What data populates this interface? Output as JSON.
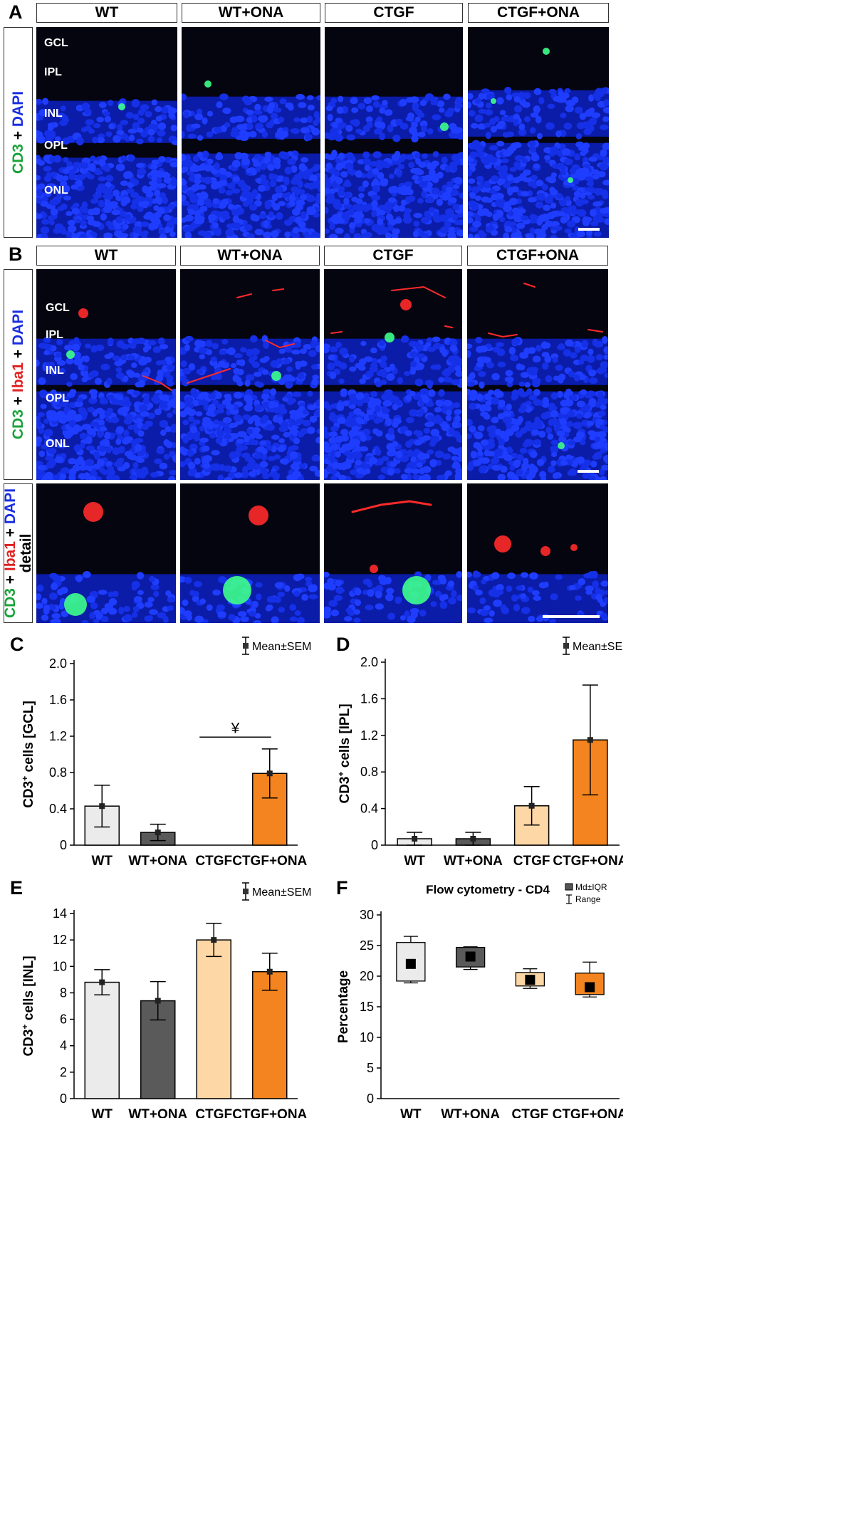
{
  "panelA": {
    "letter": "A",
    "conditions": [
      "WT",
      "WT+ONA",
      "CTGF",
      "CTGF+ONA"
    ],
    "side_label": {
      "cd3": "CD3",
      "plus": "+",
      "dapi": "DAPI"
    },
    "layers": [
      "GCL",
      "IPL",
      "INL",
      "OPL",
      "ONL"
    ]
  },
  "panelB": {
    "letter": "B",
    "conditions": [
      "WT",
      "WT+ONA",
      "CTGF",
      "CTGF+ONA"
    ],
    "side_label": {
      "cd3": "CD3",
      "plus1": "+",
      "iba1": "Iba1",
      "plus2": "+",
      "dapi": "DAPI"
    },
    "detail_label": {
      "cd3": "CD3",
      "plus1": "+",
      "iba1": "Iba1",
      "plus2": "+",
      "dapi": "DAPI",
      "detail": "detail"
    },
    "layers": [
      "GCL",
      "IPL",
      "INL",
      "OPL",
      "ONL"
    ]
  },
  "colors": {
    "WT": "#ebebeb",
    "WT+ONA": "#5a5a5a",
    "CTGF": "#fdd8a6",
    "CTGF+ONA": "#f3841f",
    "cd3": "#19a33a",
    "iba1": "#e02020",
    "dapi": "#1a2ee0"
  },
  "chart_data": [
    {
      "panel": "C",
      "type": "bar",
      "categories": [
        "WT",
        "WT+ONA",
        "CTGF",
        "CTGF+ONA"
      ],
      "values": [
        0.43,
        0.14,
        0.0,
        0.79
      ],
      "sem": [
        0.23,
        0.09,
        0.0,
        0.27
      ],
      "ylabel_main": "CD3",
      "ylabel_sup": "+",
      "ylabel_rest": " cells [GCL]",
      "yticks": [
        "0",
        "0.4",
        "0.8",
        "1.2",
        "1.6",
        "2.0"
      ],
      "ylim": [
        0,
        2.0
      ],
      "legend": "Mean±SEM",
      "annotation": "¥"
    },
    {
      "panel": "D",
      "type": "bar",
      "categories": [
        "WT",
        "WT+ONA",
        "CTGF",
        "CTGF+ONA"
      ],
      "values": [
        0.07,
        0.07,
        0.43,
        1.15
      ],
      "sem": [
        0.07,
        0.07,
        0.21,
        0.6
      ],
      "ylabel_main": "CD3",
      "ylabel_sup": "+",
      "ylabel_rest": " cells [IPL]",
      "yticks": [
        "0",
        "0.4",
        "0.8",
        "1.2",
        "1.6",
        "2.0"
      ],
      "ylim": [
        0,
        2.0
      ],
      "legend": "Mean±SEM"
    },
    {
      "panel": "E",
      "type": "bar",
      "categories": [
        "WT",
        "WT+ONA",
        "CTGF",
        "CTGF+ONA"
      ],
      "values": [
        8.8,
        7.4,
        12.0,
        9.6
      ],
      "sem": [
        0.95,
        1.45,
        1.25,
        1.4
      ],
      "ylabel_main": "CD3",
      "ylabel_sup": "+",
      "ylabel_rest": " cells [INL]",
      "yticks": [
        "0",
        "2",
        "4",
        "6",
        "8",
        "10",
        "12",
        "14"
      ],
      "ylim": [
        0,
        14
      ],
      "legend": "Mean±SEM"
    },
    {
      "panel": "F",
      "type": "box",
      "title": "Flow cytometry - CD4",
      "categories": [
        "WT",
        "WT+ONA",
        "CTGF",
        "CTGF+ONA"
      ],
      "median": [
        22.0,
        23.2,
        19.4,
        18.2
      ],
      "q1": [
        19.2,
        21.5,
        18.4,
        17.0
      ],
      "q3": [
        25.5,
        24.7,
        20.6,
        20.5
      ],
      "min": [
        18.9,
        21.1,
        18.0,
        16.6
      ],
      "max": [
        26.5,
        24.8,
        21.2,
        22.3
      ],
      "ylabel": "Percentage",
      "yticks": [
        "0",
        "5",
        "10",
        "15",
        "20",
        "25",
        "30"
      ],
      "ylim": [
        0,
        30
      ],
      "legend_box": "Md±IQR",
      "legend_range": "Range"
    }
  ]
}
